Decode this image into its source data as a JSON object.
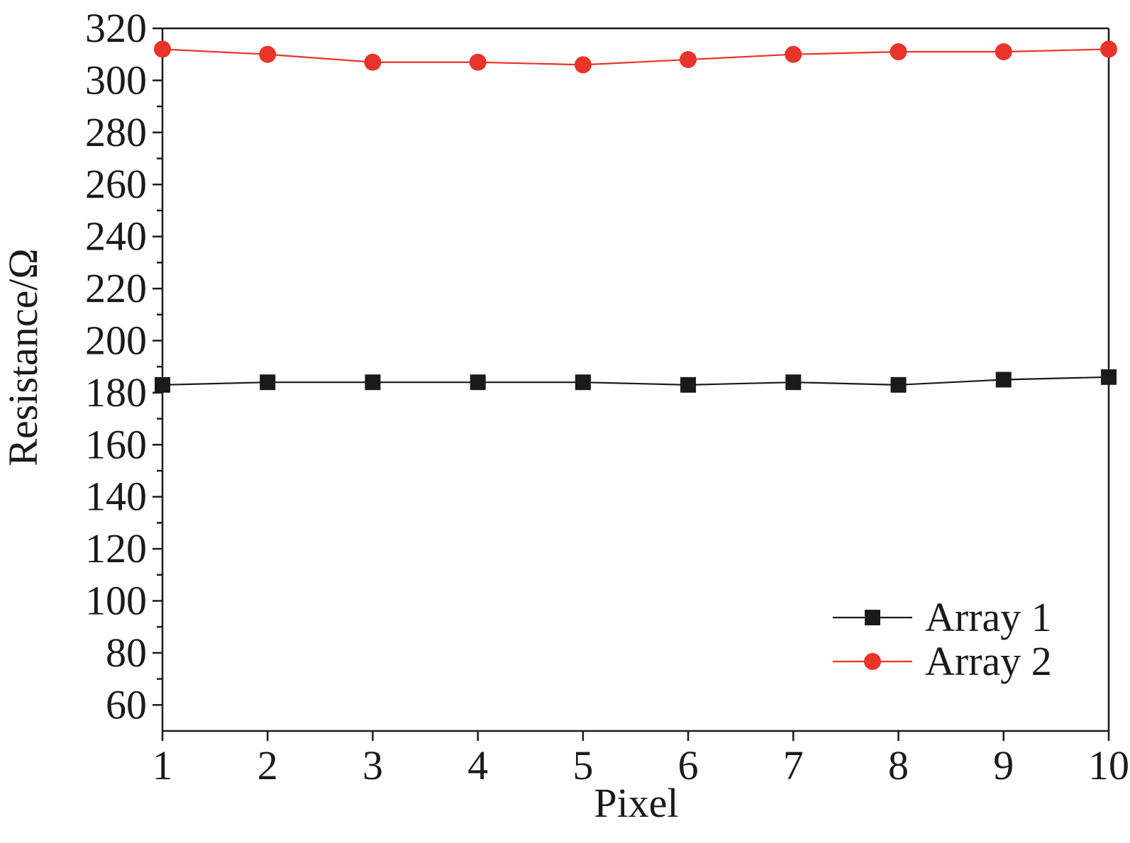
{
  "chart_data": {
    "type": "line",
    "title": "",
    "xlabel": "Pixel",
    "ylabel": "Resistance/Ω",
    "x": [
      1,
      2,
      3,
      4,
      5,
      6,
      7,
      8,
      9,
      10
    ],
    "x_ticks": [
      "1",
      "2",
      "3",
      "4",
      "5",
      "6",
      "7",
      "8",
      "9",
      "10"
    ],
    "xlim": [
      1,
      10
    ],
    "ylim": [
      50,
      320
    ],
    "y_ticks": [
      "60",
      "80",
      "100",
      "120",
      "140",
      "160",
      "180",
      "200",
      "220",
      "240",
      "260",
      "280",
      "300",
      "320"
    ],
    "grid": false,
    "legend_position": "bottom-right",
    "series": [
      {
        "name": "Array 1",
        "marker": "square",
        "color": "#1a1a1a",
        "values": [
          183,
          184,
          184,
          184,
          184,
          183,
          184,
          183,
          185,
          186
        ]
      },
      {
        "name": "Array 2",
        "marker": "circle",
        "color": "#e8342a",
        "values": [
          312,
          310,
          307,
          307,
          306,
          308,
          310,
          311,
          311,
          312
        ]
      }
    ]
  }
}
